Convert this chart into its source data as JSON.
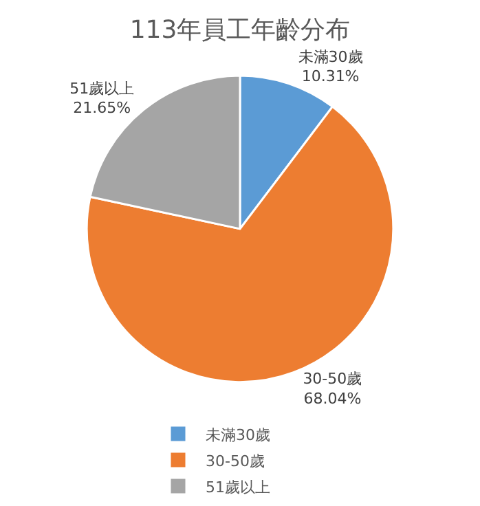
{
  "chart_data": {
    "type": "pie",
    "title": "113年員工年齡分布",
    "categories": [
      "未滿30歲",
      "30-50歲",
      "51歲以上"
    ],
    "values": [
      10.31,
      68.04,
      21.65
    ],
    "value_labels": [
      "10.31%",
      "68.04%",
      "21.65%"
    ],
    "colors": [
      "#5b9bd5",
      "#ed7d31",
      "#a5a5a5"
    ],
    "legend": "bottom"
  }
}
